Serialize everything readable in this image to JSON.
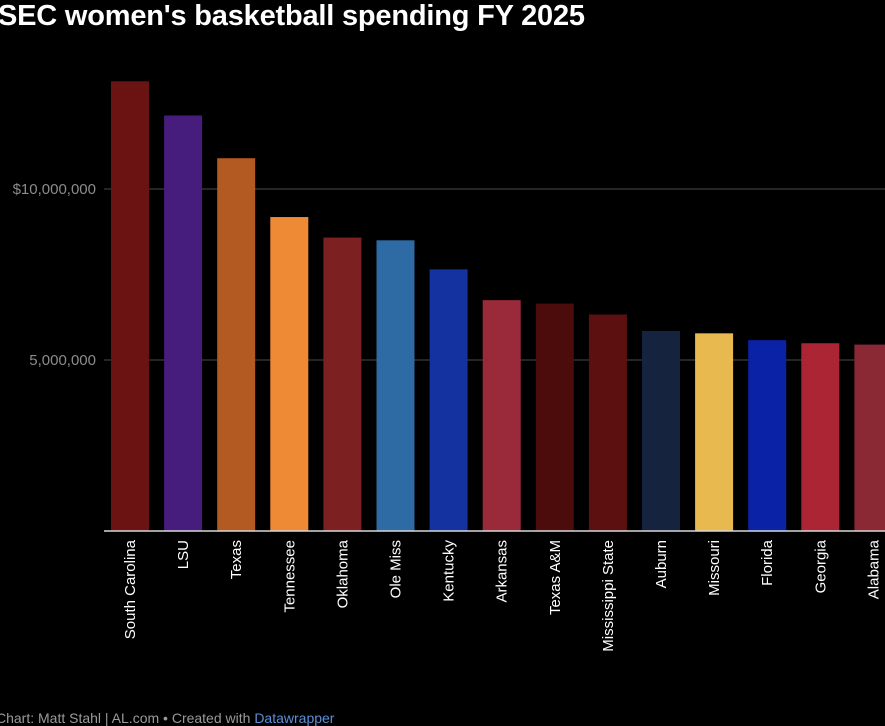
{
  "chart_data": {
    "type": "bar",
    "title": "SEC women's basketball spending FY 2025",
    "categories": [
      "South Carolina",
      "LSU",
      "Texas",
      "Tennessee",
      "Oklahoma",
      "Ole Miss",
      "Kentucky",
      "Arkansas",
      "Texas A&M",
      "Mississippi State",
      "Auburn",
      "Missouri",
      "Florida",
      "Georgia",
      "Alabama"
    ],
    "values": [
      13150000,
      12150000,
      10900000,
      9180000,
      8580000,
      8500000,
      7650000,
      6750000,
      6650000,
      6330000,
      5850000,
      5780000,
      5580000,
      5490000,
      5450000
    ],
    "colors": [
      "#6b1212",
      "#461d7c",
      "#b35a22",
      "#ee8a35",
      "#7c2022",
      "#2e6aa3",
      "#1433a0",
      "#9a2a3a",
      "#4c0c0c",
      "#5d1010",
      "#15233f",
      "#e8b94e",
      "#0a22a6",
      "#ac2535",
      "#8a2833"
    ],
    "ylim": [
      0,
      14000000
    ],
    "yticks": [
      5000000,
      10000000
    ],
    "ytick_labels": [
      "5,000,000",
      "$10,000,000"
    ],
    "xlabel": "",
    "ylabel": "",
    "grid": true
  },
  "footer": {
    "source_text": "Chart: Matt Stahl | AL.com • Created with ",
    "link_text": "Datawrapper"
  }
}
